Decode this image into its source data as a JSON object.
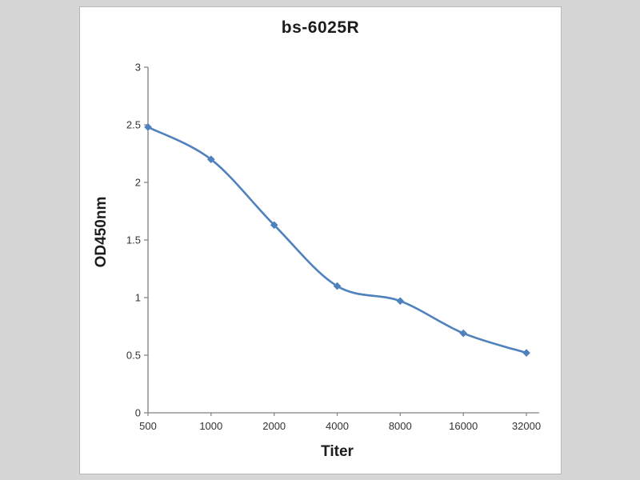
{
  "chart_data": {
    "type": "line",
    "title": "bs-6025R",
    "xlabel": "Titer",
    "ylabel": "OD450nm",
    "categories": [
      "500",
      "1000",
      "2000",
      "4000",
      "8000",
      "16000",
      "32000"
    ],
    "series": [
      {
        "name": "bs-6025R",
        "values": [
          2.48,
          2.2,
          1.63,
          1.1,
          0.97,
          0.69,
          0.52
        ]
      }
    ],
    "ylim": [
      0,
      3
    ],
    "yticks": [
      0,
      0.5,
      1,
      1.5,
      2,
      2.5,
      3
    ],
    "ytick_labels": [
      "0",
      "0.5",
      "1",
      "1.5",
      "2",
      "2.5",
      "3"
    ],
    "grid": false,
    "legend_position": "none",
    "marker": "diamond"
  },
  "colors": {
    "line": "#4f81bd",
    "marker": "#4f81bd",
    "axis": "#808080",
    "tick_text": "#333333",
    "title_text": "#1c1c1c",
    "panel_background": "#ffffff",
    "panel_border": "#b8b8b8",
    "page_background": "#d6d6d6"
  }
}
